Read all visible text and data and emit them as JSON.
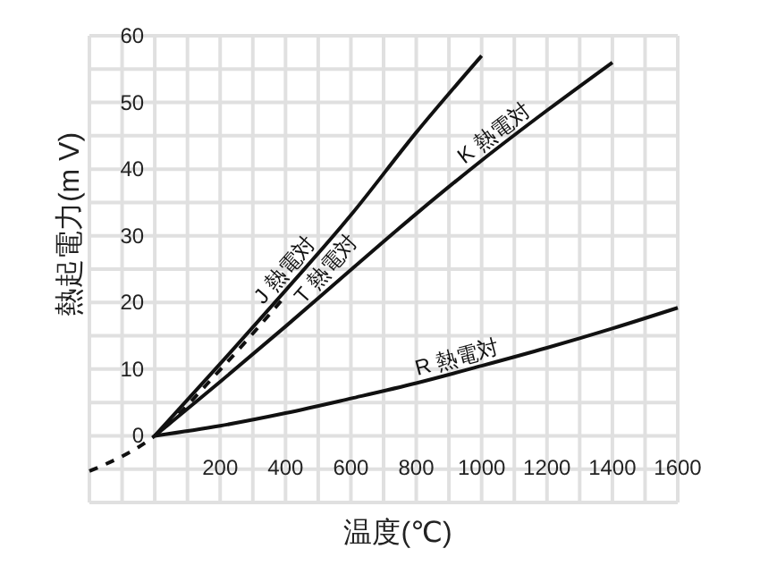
{
  "chart_data": {
    "type": "line",
    "xlabel": "温度(℃)",
    "ylabel": "熱起電力(m V)",
    "xlim": [
      -200,
      1600
    ],
    "ylim": [
      -10,
      60
    ],
    "xticks": [
      {
        "value": -200,
        "label": null
      },
      {
        "value": -100,
        "label": null
      },
      {
        "value": 0,
        "label": null
      },
      {
        "value": 100,
        "label": null
      },
      200,
      {
        "value": 300,
        "label": null
      },
      400,
      {
        "value": 500,
        "label": null
      },
      600,
      {
        "value": 700,
        "label": null
      },
      800,
      {
        "value": 900,
        "label": null
      },
      1000,
      {
        "value": 1100,
        "label": null
      },
      1200,
      {
        "value": 1300,
        "label": null
      },
      1400,
      {
        "value": 1500,
        "label": null
      },
      1600
    ],
    "yticks": [
      {
        "value": -10,
        "label": null
      },
      {
        "value": -5,
        "label": null
      },
      0,
      {
        "value": 5,
        "label": null
      },
      10,
      {
        "value": 15,
        "label": null
      },
      20,
      {
        "value": 25,
        "label": null
      },
      30,
      {
        "value": 35,
        "label": null
      },
      40,
      {
        "value": 45,
        "label": null
      },
      50,
      {
        "value": 55,
        "label": null
      },
      60
    ],
    "grid": true,
    "marker": "none",
    "series": [
      {
        "name": "J 熱電対",
        "color": "#111111",
        "line_style": "solid",
        "x": [
          0,
          200,
          400,
          600,
          800,
          1000
        ],
        "values": [
          0,
          10.8,
          21.8,
          33.1,
          45.5,
          57
        ]
      },
      {
        "name": "T 熱電対",
        "color": "#111111",
        "line_style": "dashed",
        "x": [
          -200,
          0,
          200,
          400
        ],
        "values": [
          -5.3,
          0,
          9.9,
          21
        ]
      },
      {
        "name": "K 熱電対",
        "color": "#111111",
        "line_style": "solid",
        "x": [
          0,
          200,
          400,
          600,
          800,
          1000,
          1200,
          1400
        ],
        "values": [
          0,
          8.1,
          16.4,
          24.9,
          33.3,
          41.3,
          48.8,
          56
        ]
      },
      {
        "name": "R 熱電対",
        "color": "#111111",
        "line_style": "solid",
        "x": [
          0,
          200,
          400,
          600,
          800,
          1000,
          1200,
          1400,
          1600
        ],
        "values": [
          0,
          1.5,
          3.4,
          5.6,
          7.9,
          10.5,
          13.2,
          16.1,
          19.2
        ]
      }
    ]
  }
}
